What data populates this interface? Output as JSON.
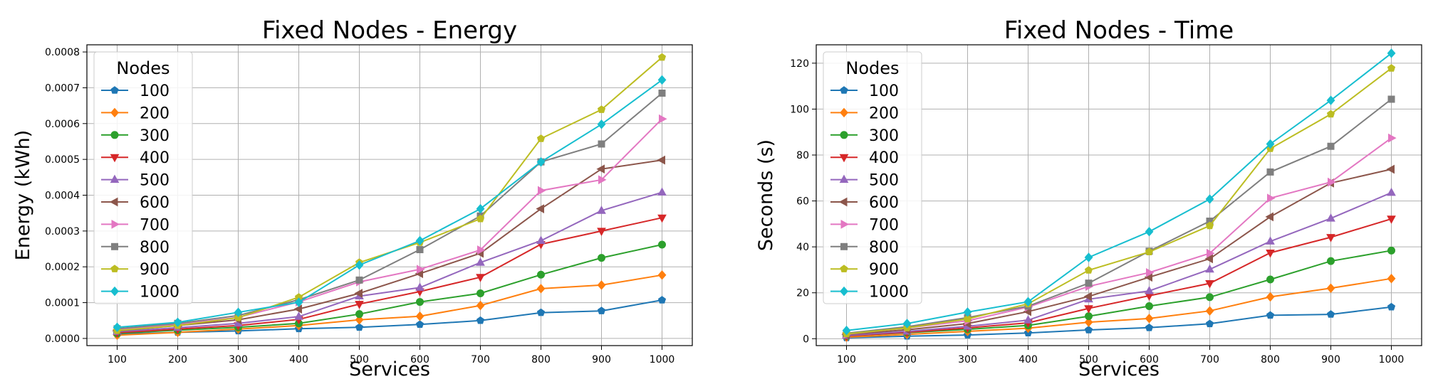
{
  "chart_data": [
    {
      "type": "line",
      "title": "Fixed Nodes - Energy",
      "xlabel": "Services",
      "ylabel": "Energy (kWh)",
      "x": [
        100,
        200,
        300,
        400,
        500,
        600,
        700,
        800,
        900,
        1000
      ],
      "xlim": [
        50,
        1050
      ],
      "ylim": [
        -2e-05,
        0.00082
      ],
      "yticks": [
        0,
        0.0001,
        0.0002,
        0.0003,
        0.0004,
        0.0005,
        0.0006,
        0.0007,
        0.0008
      ],
      "ytick_labels": [
        "0.0000",
        "0.0001",
        "0.0002",
        "0.0003",
        "0.0004",
        "0.0005",
        "0.0006",
        "0.0007",
        "0.0008"
      ],
      "grid": true,
      "legend": {
        "title": "Nodes",
        "placement": "upper-left"
      },
      "series": [
        {
          "name": "100",
          "color": "#1f77b4",
          "marker": "pentagon",
          "values": [
            1.2e-05,
            1.7e-05,
            2.1e-05,
            2.7e-05,
            3.1e-05,
            3.9e-05,
            5e-05,
            7.2e-05,
            7.7e-05,
            0.000107
          ]
        },
        {
          "name": "200",
          "color": "#ff7f0e",
          "marker": "diamond",
          "values": [
            9e-06,
            1.7e-05,
            2.6e-05,
            3.6e-05,
            5.2e-05,
            6.2e-05,
            9.2e-05,
            0.000139,
            0.000149,
            0.000177
          ]
        },
        {
          "name": "300",
          "color": "#2ca02c",
          "marker": "circle",
          "values": [
            1.4e-05,
            2.3e-05,
            3.1e-05,
            4.2e-05,
            6.8e-05,
            0.000102,
            0.000126,
            0.000178,
            0.000225,
            0.000262
          ]
        },
        {
          "name": "400",
          "color": "#d62728",
          "marker": "triangle-down",
          "values": [
            1.6e-05,
            2.6e-05,
            3.6e-05,
            5.3e-05,
            9.6e-05,
            0.000131,
            0.000171,
            0.000263,
            0.0003,
            0.000337
          ]
        },
        {
          "name": "500",
          "color": "#9467bd",
          "marker": "triangle-up",
          "values": [
            1.9e-05,
            3e-05,
            4.2e-05,
            6.1e-05,
            0.000118,
            0.000142,
            0.000212,
            0.000273,
            0.000357,
            0.000408
          ]
        },
        {
          "name": "600",
          "color": "#8c564b",
          "marker": "triangle-left",
          "values": [
            2.1e-05,
            3.6e-05,
            5.2e-05,
            8.2e-05,
            0.000126,
            0.000181,
            0.000238,
            0.000362,
            0.000473,
            0.000498
          ]
        },
        {
          "name": "700",
          "color": "#e377c2",
          "marker": "triangle-right",
          "values": [
            2.4e-05,
            3.9e-05,
            5.9e-05,
            0.000102,
            0.000158,
            0.000193,
            0.000247,
            0.000413,
            0.000443,
            0.000613
          ]
        },
        {
          "name": "800",
          "color": "#7f7f7f",
          "marker": "square",
          "values": [
            2.7e-05,
            4.2e-05,
            6.4e-05,
            0.000108,
            0.000163,
            0.000248,
            0.000342,
            0.000493,
            0.000543,
            0.000685
          ]
        },
        {
          "name": "900",
          "color": "#bcbd22",
          "marker": "pentagon",
          "values": [
            2.2e-05,
            3.6e-05,
            5.8e-05,
            0.000115,
            0.000212,
            0.000268,
            0.000334,
            0.000558,
            0.000639,
            0.000785
          ]
        },
        {
          "name": "1000",
          "color": "#17becf",
          "marker": "diamond",
          "values": [
            3.1e-05,
            4.5e-05,
            7.3e-05,
            0.000101,
            0.000205,
            0.000273,
            0.000362,
            0.000493,
            0.000598,
            0.000722
          ]
        }
      ]
    },
    {
      "type": "line",
      "title": "Fixed Nodes - Time",
      "xlabel": "Services",
      "ylabel": "Seconds (s)",
      "x": [
        100,
        200,
        300,
        400,
        500,
        600,
        700,
        800,
        900,
        1000
      ],
      "xlim": [
        50,
        1050
      ],
      "ylim": [
        -3,
        128
      ],
      "yticks": [
        0,
        20,
        40,
        60,
        80,
        100,
        120
      ],
      "ytick_labels": [
        "0",
        "20",
        "40",
        "60",
        "80",
        "100",
        "120"
      ],
      "grid": true,
      "legend": {
        "title": "Nodes",
        "placement": "upper-left"
      },
      "series": [
        {
          "name": "100",
          "color": "#1f77b4",
          "marker": "pentagon",
          "values": [
            0.4,
            1.1,
            1.6,
            2.5,
            3.8,
            4.8,
            6.5,
            10.2,
            10.6,
            13.8
          ]
        },
        {
          "name": "200",
          "color": "#ff7f0e",
          "marker": "diamond",
          "values": [
            0.7,
            1.9,
            3.2,
            4.6,
            7.2,
            8.8,
            12.1,
            18.2,
            22.0,
            26.2
          ]
        },
        {
          "name": "300",
          "color": "#2ca02c",
          "marker": "circle",
          "values": [
            1.2,
            2.6,
            4.1,
            5.8,
            9.8,
            14.2,
            18.1,
            25.8,
            33.8,
            38.4
          ]
        },
        {
          "name": "400",
          "color": "#d62728",
          "marker": "triangle-down",
          "values": [
            1.2,
            2.8,
            4.7,
            6.9,
            13.2,
            18.7,
            24.1,
            37.4,
            44.2,
            52.2
          ]
        },
        {
          "name": "500",
          "color": "#9467bd",
          "marker": "triangle-up",
          "values": [
            1.4,
            3.2,
            5.4,
            8.1,
            17.2,
            20.8,
            30.2,
            42.4,
            52.4,
            63.6
          ]
        },
        {
          "name": "600",
          "color": "#8c564b",
          "marker": "triangle-left",
          "values": [
            1.8,
            3.9,
            6.6,
            11.8,
            18.4,
            26.8,
            34.8,
            53.1,
            67.8,
            73.8
          ]
        },
        {
          "name": "700",
          "color": "#e377c2",
          "marker": "triangle-right",
          "values": [
            2.0,
            4.7,
            7.8,
            13.8,
            22.8,
            28.8,
            37.2,
            61.2,
            68.2,
            87.4
          ]
        },
        {
          "name": "800",
          "color": "#7f7f7f",
          "marker": "square",
          "values": [
            2.4,
            5.2,
            9.2,
            14.2,
            24.2,
            38.1,
            51.2,
            72.6,
            83.8,
            104.3
          ]
        },
        {
          "name": "900",
          "color": "#bcbd22",
          "marker": "pentagon",
          "values": [
            2.1,
            4.7,
            8.6,
            15.2,
            29.8,
            37.8,
            49.2,
            82.8,
            97.8,
            117.8
          ]
        },
        {
          "name": "1000",
          "color": "#17becf",
          "marker": "diamond",
          "values": [
            3.6,
            6.6,
            11.6,
            16.1,
            35.4,
            46.6,
            60.8,
            84.8,
            103.8,
            124.3
          ]
        }
      ]
    }
  ]
}
